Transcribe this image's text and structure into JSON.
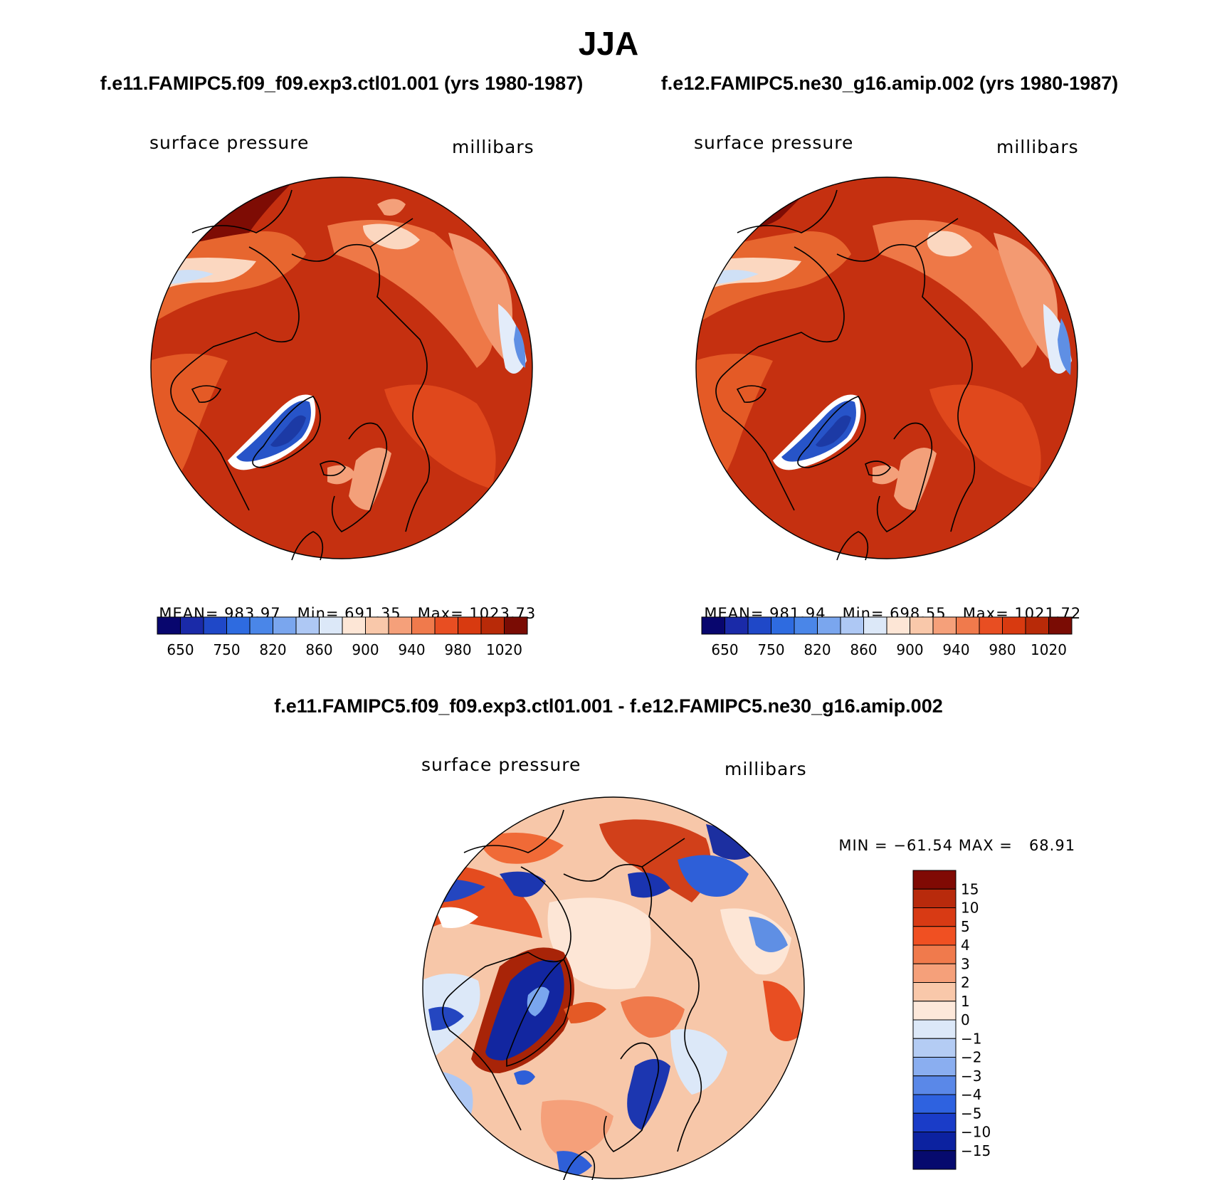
{
  "season": "JJA",
  "panels": [
    {
      "title": "f.e11.FAMIPC5.f09_f09.exp3.ctl01.001 (yrs 1980-1987)",
      "variable": "surface pressure",
      "units": "millibars",
      "stats": {
        "mean_label": "MEAN=",
        "mean": "983.97",
        "min_label": "Min=",
        "min": "691.35",
        "max_label": "Max=",
        "max": "1023.73"
      }
    },
    {
      "title": "f.e12.FAMIPC5.ne30_g16.amip.002 (yrs 1980-1987)",
      "variable": "surface pressure",
      "units": "millibars",
      "stats": {
        "mean_label": "MEAN=",
        "mean": "981.94",
        "min_label": "Min=",
        "min": "698.55",
        "max_label": "Max=",
        "max": "1021.72"
      }
    }
  ],
  "colorbar_abs": {
    "tick_labels": [
      "650",
      "750",
      "820",
      "860",
      "900",
      "940",
      "980",
      "1020"
    ],
    "colors": [
      "#08066e",
      "#1a2aa8",
      "#1f48c8",
      "#2e6be0",
      "#4a86e8",
      "#7aa6ee",
      "#aec8f4",
      "#dce8f8",
      "#fde6d6",
      "#f9c8aa",
      "#f5a07a",
      "#f07a4c",
      "#e84e22",
      "#d83a10",
      "#b82a08",
      "#7a0c04"
    ]
  },
  "difference": {
    "title": "f.e11.FAMIPC5.f09_f09.exp3.ctl01.001 - f.e12.FAMIPC5.ne30_g16.amip.002",
    "variable": "surface pressure",
    "units": "millibars",
    "min_label": "MIN =",
    "min": "−61.54",
    "max_label": "MAX =",
    "max": "68.91",
    "tick_labels": [
      "15",
      "10",
      "5",
      "4",
      "3",
      "2",
      "1",
      "0",
      "−1",
      "−2",
      "−3",
      "−4",
      "−5",
      "−10",
      "−15"
    ],
    "colors": [
      "#800a04",
      "#b82a0c",
      "#d83a14",
      "#f05022",
      "#f07a4c",
      "#f5a07a",
      "#f9c8aa",
      "#fde8da",
      "#dce8f8",
      "#b4ccf4",
      "#8aaef0",
      "#5a88e8",
      "#2e62e0",
      "#1a3cc8",
      "#0c22a0",
      "#060a6e"
    ]
  }
}
